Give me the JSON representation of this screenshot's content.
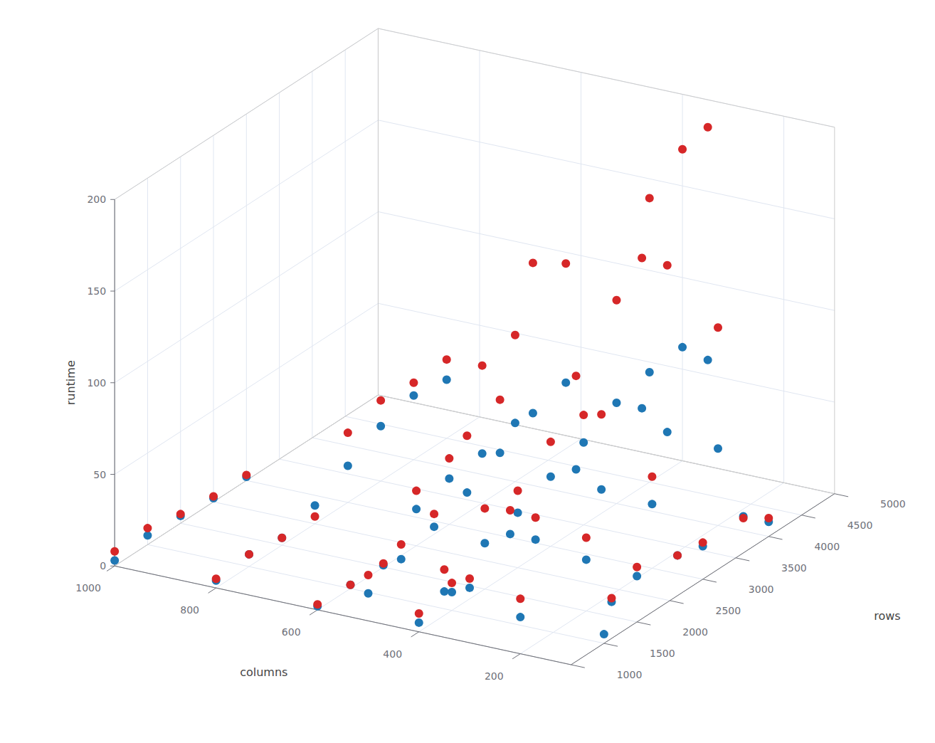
{
  "chart_data": {
    "type": "scatter3d",
    "xlabel": "columns",
    "ylabel": "rows",
    "zlabel": "runtime",
    "xlim": [
      1000,
      100
    ],
    "ylim": [
      1000,
      5000
    ],
    "zlim": [
      0,
      200
    ],
    "xticks": [
      1000,
      800,
      600,
      400,
      200
    ],
    "yticks": [
      1000,
      1500,
      2000,
      2500,
      3000,
      3500,
      4000,
      4500,
      5000
    ],
    "zticks": [
      0,
      50,
      100,
      150,
      200
    ],
    "grid": true,
    "series": [
      {
        "color": "#d62728",
        "values": [
          [
            1000,
            1000,
            8
          ],
          [
            1000,
            1500,
            9
          ],
          [
            1000,
            2000,
            5
          ],
          [
            1000,
            2500,
            3
          ],
          [
            1000,
            3000,
            3
          ],
          [
            800,
            1000,
            5
          ],
          [
            800,
            1500,
            7
          ],
          [
            800,
            2000,
            4
          ],
          [
            800,
            2500,
            4
          ],
          [
            800,
            3000,
            38
          ],
          [
            800,
            3500,
            44
          ],
          [
            800,
            4000,
            42
          ],
          [
            800,
            4500,
            43
          ],
          [
            600,
            1000,
            3
          ],
          [
            600,
            1500,
            2
          ],
          [
            600,
            2000,
            2
          ],
          [
            600,
            2500,
            30
          ],
          [
            600,
            3000,
            36
          ],
          [
            600,
            3500,
            75
          ],
          [
            600,
            4000,
            80
          ],
          [
            500,
            1000,
            25
          ],
          [
            500,
            1500,
            30
          ],
          [
            500,
            2000,
            35
          ],
          [
            500,
            2500,
            66
          ],
          [
            500,
            3000,
            74
          ],
          [
            500,
            3500,
            137
          ],
          [
            500,
            4000,
            125
          ],
          [
            400,
            1000,
            10
          ],
          [
            400,
            1500,
            15
          ],
          [
            400,
            2000,
            44
          ],
          [
            400,
            2500,
            42
          ],
          [
            400,
            3000,
            57
          ],
          [
            400,
            3500,
            60
          ],
          [
            400,
            4000,
            111
          ],
          [
            400,
            4500,
            155
          ],
          [
            400,
            5000,
            170
          ],
          [
            350,
            1000,
            37
          ],
          [
            350,
            2000,
            46
          ],
          [
            350,
            3000,
            96
          ],
          [
            350,
            4000,
            137
          ],
          [
            350,
            5000,
            185
          ],
          [
            300,
            1000,
            35
          ],
          [
            300,
            2000,
            45
          ],
          [
            300,
            3000,
            78
          ],
          [
            300,
            4000,
            136
          ],
          [
            200,
            1000,
            30
          ],
          [
            200,
            2000,
            40
          ],
          [
            200,
            3000,
            50
          ],
          [
            200,
            4000,
            108
          ],
          [
            150,
            2000,
            10
          ],
          [
            150,
            3000,
            10
          ],
          [
            150,
            4000,
            7
          ],
          [
            100,
            2000,
            30
          ],
          [
            100,
            3000,
            20
          ],
          [
            100,
            4000,
            10
          ]
        ]
      },
      {
        "color": "#1f77b4",
        "values": [
          [
            1000,
            1000,
            3
          ],
          [
            1000,
            1500,
            5
          ],
          [
            1000,
            2000,
            4
          ],
          [
            1000,
            2500,
            2
          ],
          [
            1000,
            3000,
            2
          ],
          [
            800,
            1000,
            4
          ],
          [
            800,
            1500,
            7
          ],
          [
            800,
            2000,
            4
          ],
          [
            800,
            2500,
            10
          ],
          [
            800,
            3000,
            20
          ],
          [
            800,
            3500,
            30
          ],
          [
            800,
            4000,
            35
          ],
          [
            800,
            4500,
            32
          ],
          [
            600,
            1000,
            2
          ],
          [
            600,
            1500,
            2
          ],
          [
            600,
            2000,
            1
          ],
          [
            600,
            2500,
            20
          ],
          [
            600,
            3000,
            25
          ],
          [
            600,
            3500,
            27
          ],
          [
            600,
            4000,
            32
          ],
          [
            500,
            1000,
            15
          ],
          [
            500,
            1500,
            22
          ],
          [
            500,
            2000,
            28
          ],
          [
            500,
            2500,
            35
          ],
          [
            500,
            3000,
            45
          ],
          [
            500,
            3500,
            55
          ],
          [
            500,
            4000,
            60
          ],
          [
            400,
            1000,
            5
          ],
          [
            400,
            1500,
            10
          ],
          [
            400,
            2000,
            25
          ],
          [
            400,
            2500,
            30
          ],
          [
            400,
            3000,
            38
          ],
          [
            400,
            3500,
            45
          ],
          [
            400,
            4000,
            55
          ],
          [
            400,
            4500,
            60
          ],
          [
            400,
            5000,
            62
          ],
          [
            350,
            1000,
            25
          ],
          [
            350,
            2000,
            33
          ],
          [
            350,
            3000,
            45
          ],
          [
            350,
            4000,
            55
          ],
          [
            350,
            5000,
            58
          ],
          [
            300,
            1000,
            30
          ],
          [
            300,
            2000,
            33
          ],
          [
            300,
            3000,
            37
          ],
          [
            300,
            4000,
            45
          ],
          [
            200,
            1000,
            20
          ],
          [
            200,
            2000,
            28
          ],
          [
            200,
            3000,
            35
          ],
          [
            200,
            4000,
            42
          ],
          [
            150,
            2000,
            8
          ],
          [
            150,
            3000,
            10
          ],
          [
            150,
            4000,
            8
          ],
          [
            100,
            2000,
            25
          ],
          [
            100,
            3000,
            18
          ],
          [
            100,
            4000,
            8
          ],
          [
            100,
            1500,
            5
          ]
        ]
      }
    ]
  }
}
